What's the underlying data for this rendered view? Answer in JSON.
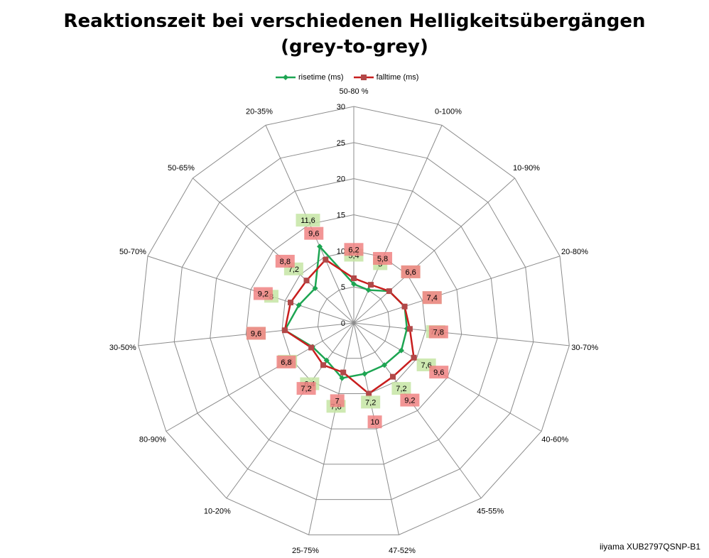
{
  "title": {
    "line1": "Reaktionszeit bei verschiedenen Helligkeitsübergängen",
    "line2": "(grey-to-grey)"
  },
  "footer": "iiyama XUB2797QSNP-B1",
  "colors": {
    "rise": "#1da552",
    "fall": "#c81e1e",
    "rise_label_bg": "#c6e5a4",
    "fall_label_bg": "#f08282",
    "grid": "#8c8c8c"
  },
  "chart_data": {
    "type": "radar",
    "categories": [
      "50-80 %",
      "0-100%",
      "10-90%",
      "20-80%",
      "30-70%",
      "40-60%",
      "45-55%",
      "47-52%",
      "25-75%",
      "10-20%",
      "80-90%",
      "30-50%",
      "50-70%",
      "50-65%",
      "20-35%"
    ],
    "series": [
      {
        "name": "risetime (ms)",
        "values": [
          5.4,
          5,
          6.6,
          7.4,
          7.4,
          7.6,
          7.2,
          7.2,
          7.8,
          6.4,
          6.6,
          9.6,
          8,
          7.2,
          11.6
        ]
      },
      {
        "name": "falltime (ms)",
        "values": [
          6.2,
          5.8,
          6.6,
          7.4,
          7.8,
          9.6,
          9.2,
          10,
          7,
          7.2,
          6.8,
          9.6,
          9.2,
          8.8,
          9.6
        ]
      }
    ],
    "r_axis": {
      "min": 0,
      "max": 30,
      "ticks": [
        0,
        5,
        10,
        15,
        20,
        25,
        30
      ]
    },
    "legend_position": "top",
    "grid": true,
    "data_labels": true
  }
}
